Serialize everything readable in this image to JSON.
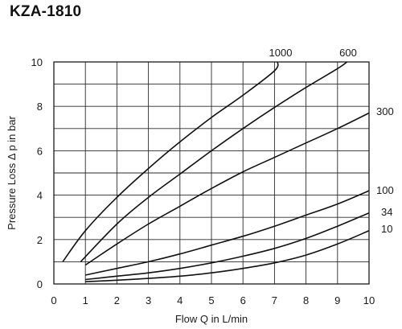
{
  "title": "KZA-1810",
  "chart_data": {
    "type": "line",
    "title": "KZA-1810",
    "xlabel": "Flow Q in L/min",
    "ylabel": "Pressure Loss Δ p in bar",
    "xlim": [
      0,
      10
    ],
    "ylim": [
      0,
      10
    ],
    "xticks": [
      "0",
      "1",
      "2",
      "3",
      "4",
      "5",
      "6",
      "7",
      "8",
      "9",
      "10"
    ],
    "yticks": [
      "0",
      "2",
      "4",
      "6",
      "8",
      "10"
    ],
    "grid": true,
    "series": [
      {
        "name": "1000",
        "points": [
          [
            0.28,
            1.0
          ],
          [
            1.0,
            2.4
          ],
          [
            2.0,
            3.9
          ],
          [
            3.0,
            5.2
          ],
          [
            4.0,
            6.4
          ],
          [
            5.0,
            7.5
          ],
          [
            6.0,
            8.5
          ],
          [
            7.0,
            9.6
          ],
          [
            7.1,
            10.0
          ]
        ]
      },
      {
        "name": "600",
        "points": [
          [
            0.85,
            1.0
          ],
          [
            2.0,
            2.7
          ],
          [
            3.0,
            3.9
          ],
          [
            4.0,
            4.95
          ],
          [
            5.0,
            6.0
          ],
          [
            6.0,
            7.0
          ],
          [
            7.0,
            7.95
          ],
          [
            8.0,
            8.85
          ],
          [
            9.0,
            9.7
          ],
          [
            9.3,
            10.0
          ]
        ]
      },
      {
        "name": "300",
        "points": [
          [
            1.0,
            0.85
          ],
          [
            2.0,
            1.8
          ],
          [
            3.0,
            2.7
          ],
          [
            4.0,
            3.5
          ],
          [
            5.0,
            4.3
          ],
          [
            6.0,
            5.05
          ],
          [
            7.0,
            5.7
          ],
          [
            8.0,
            6.35
          ],
          [
            9.0,
            7.0
          ],
          [
            10.0,
            7.7
          ]
        ]
      },
      {
        "name": "100",
        "points": [
          [
            1.0,
            0.4
          ],
          [
            2.0,
            0.7
          ],
          [
            3.0,
            1.0
          ],
          [
            4.0,
            1.35
          ],
          [
            5.0,
            1.75
          ],
          [
            6.0,
            2.15
          ],
          [
            7.0,
            2.6
          ],
          [
            8.0,
            3.1
          ],
          [
            9.0,
            3.6
          ],
          [
            10.0,
            4.2
          ]
        ]
      },
      {
        "name": "34",
        "points": [
          [
            1.0,
            0.2
          ],
          [
            2.0,
            0.35
          ],
          [
            3.0,
            0.5
          ],
          [
            4.0,
            0.7
          ],
          [
            5.0,
            0.95
          ],
          [
            6.0,
            1.25
          ],
          [
            7.0,
            1.6
          ],
          [
            8.0,
            2.05
          ],
          [
            9.0,
            2.6
          ],
          [
            10.0,
            3.2
          ]
        ]
      },
      {
        "name": "10",
        "points": [
          [
            1.0,
            0.1
          ],
          [
            2.0,
            0.17
          ],
          [
            3.0,
            0.25
          ],
          [
            4.0,
            0.35
          ],
          [
            5.0,
            0.5
          ],
          [
            6.0,
            0.7
          ],
          [
            7.0,
            0.95
          ],
          [
            8.0,
            1.3
          ],
          [
            9.0,
            1.8
          ],
          [
            10.0,
            2.4
          ]
        ]
      }
    ]
  }
}
